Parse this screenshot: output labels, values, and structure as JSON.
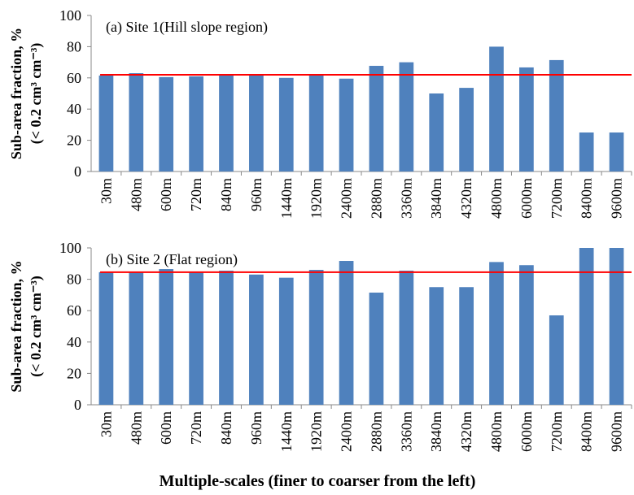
{
  "chart_data": [
    {
      "type": "bar",
      "title": "(a) Site 1(Hill slope region)",
      "y_label": [
        "Sub-area fraction, %",
        "(< 0.2 cm³ cm⁻³)"
      ],
      "categories": [
        "30m",
        "480m",
        "600m",
        "720m",
        "840m",
        "960m",
        "1440m",
        "1920m",
        "2400m",
        "2880m",
        "3360m",
        "3840m",
        "4320m",
        "4800m",
        "6000m",
        "7200m",
        "8400m",
        "9600m"
      ],
      "values": [
        61.5,
        63,
        60.5,
        61,
        62.5,
        62.5,
        60,
        62,
        59.5,
        67.7,
        70,
        50,
        53.6,
        80,
        66.7,
        71.4,
        25,
        25
      ],
      "color": "#4f81bd",
      "reference_line": {
        "value": 62,
        "color": "#ff0000"
      },
      "ylim": [
        0,
        100
      ],
      "yticks": [
        0,
        20,
        40,
        60,
        80,
        100
      ]
    },
    {
      "type": "bar",
      "title": "(b) Site 2 (Flat region)",
      "y_label": [
        "Sub-area fraction, %",
        "(< 0.2 cm³ cm⁻³)"
      ],
      "x_label": "Multiple-scales (finer to coarser  from the left)",
      "categories": [
        "30m",
        "480m",
        "600m",
        "720m",
        "840m",
        "960m",
        "1440m",
        "1920m",
        "2400m",
        "2880m",
        "3360m",
        "3840m",
        "4320m",
        "4800m",
        "6000m",
        "7200m",
        "8400m",
        "9600m"
      ],
      "values": [
        84.5,
        84.5,
        86.5,
        85,
        85.5,
        83,
        81,
        86,
        91.7,
        71.5,
        85.5,
        75,
        75,
        91,
        89,
        57,
        100,
        100
      ],
      "color": "#4f81bd",
      "reference_line": {
        "value": 84.5,
        "color": "#ff0000"
      },
      "ylim": [
        0,
        100
      ],
      "yticks": [
        0,
        20,
        40,
        60,
        80,
        100
      ]
    }
  ]
}
